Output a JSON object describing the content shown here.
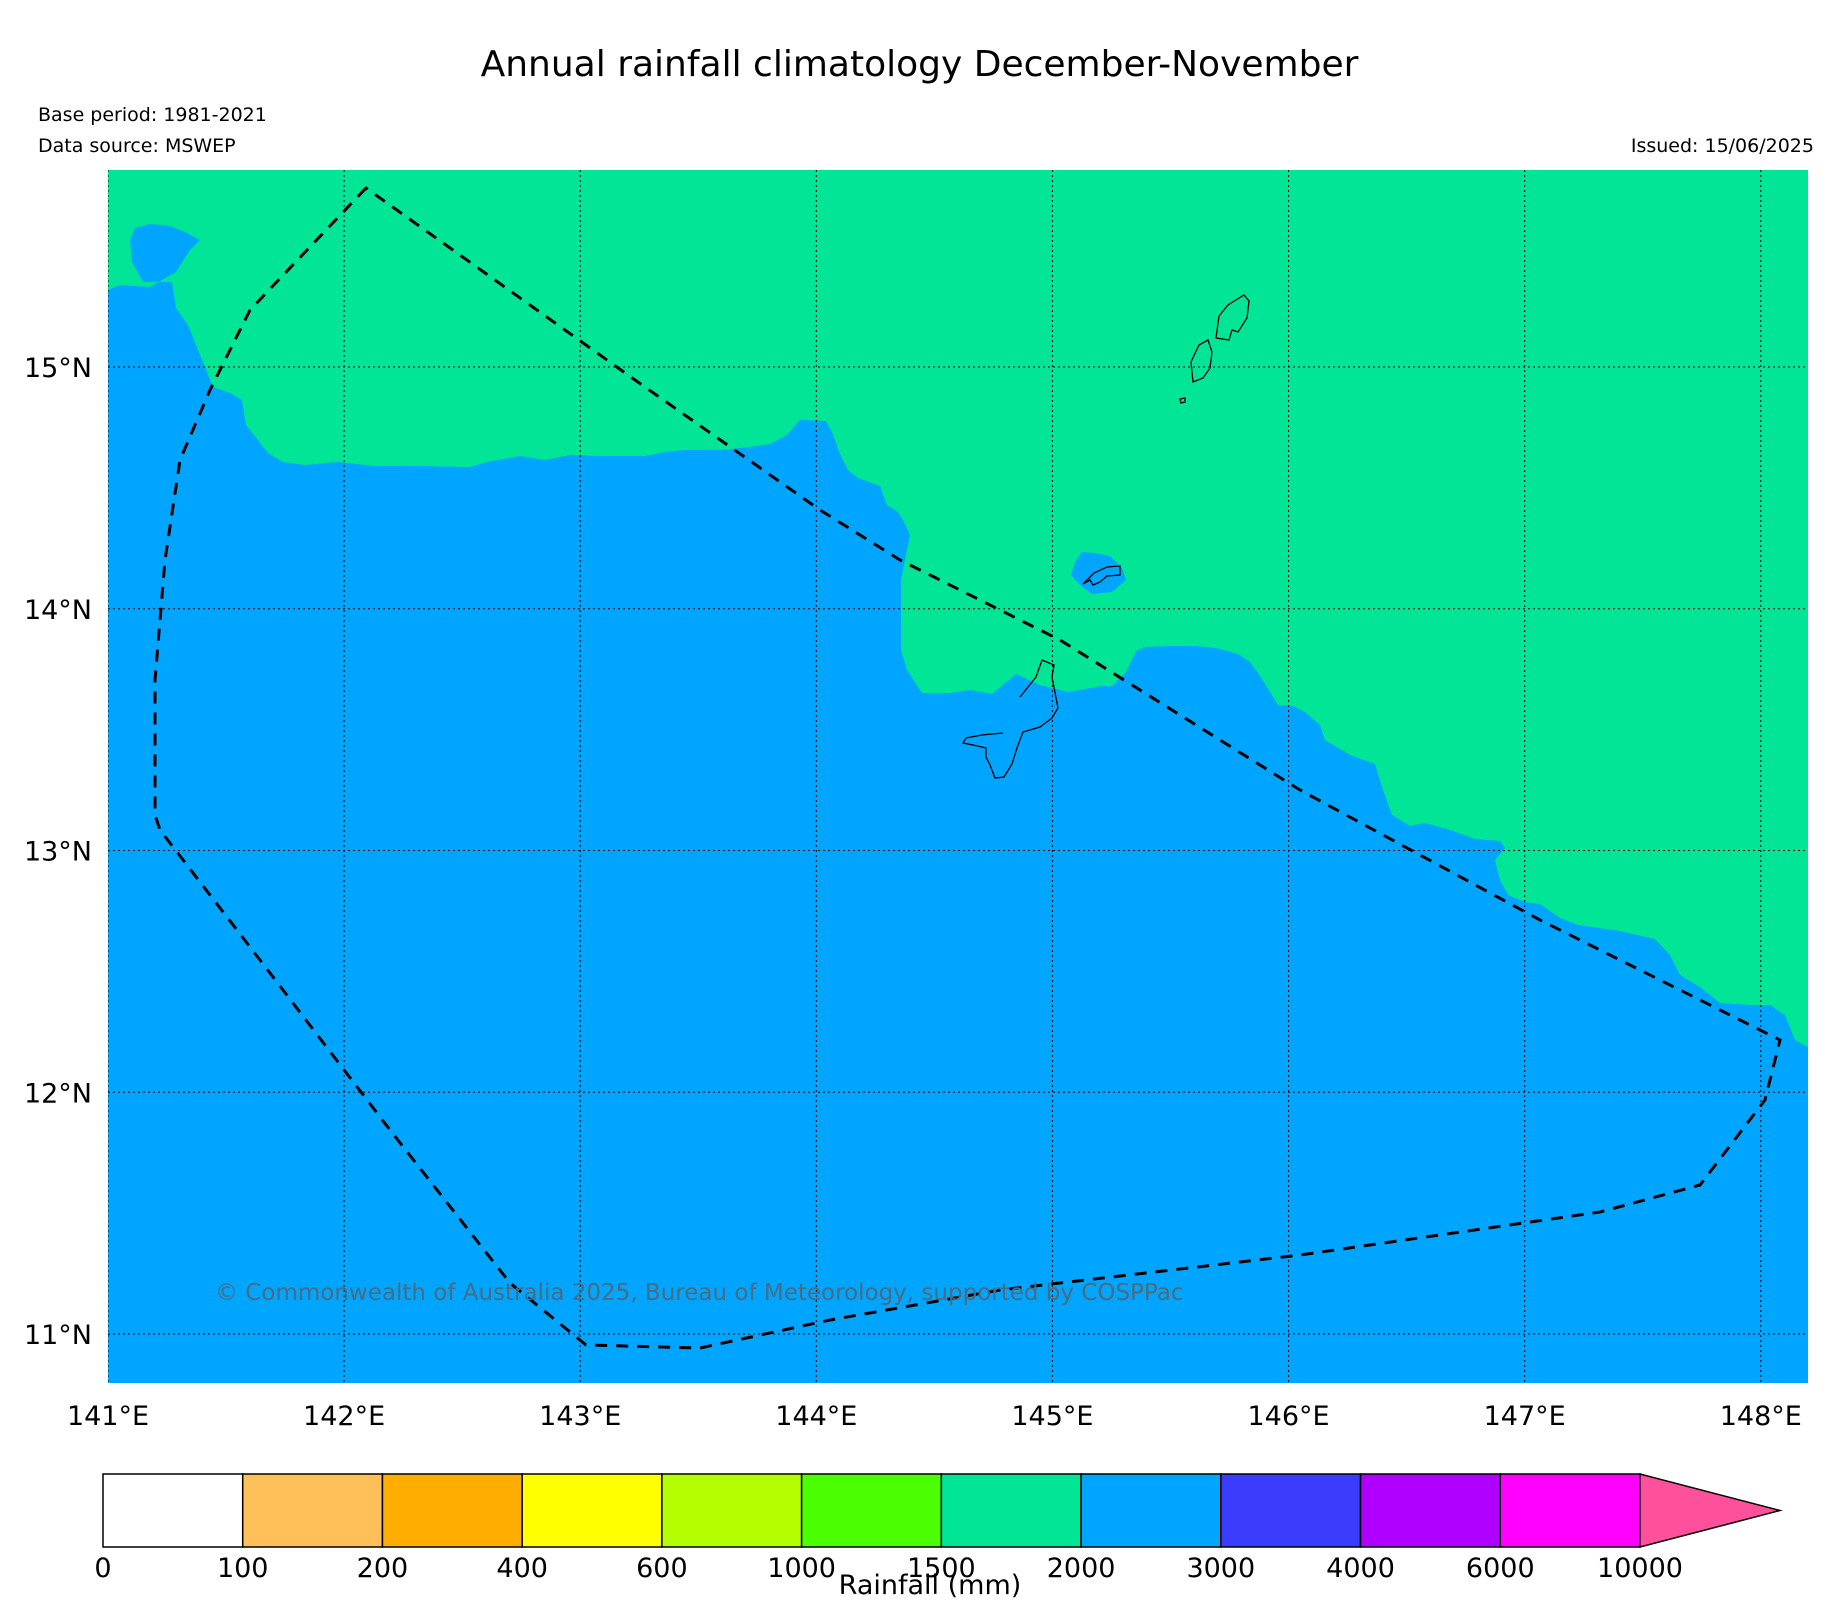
{
  "title": "Annual rainfall climatology December-November",
  "base_period": "Base period: 1981-2021",
  "data_source": "Data source: MSWEP",
  "issued": "Issued: 15/06/2025",
  "copyright": "© Commonwealth of Australia 2025, Bureau of Meteorology, supported by COSPPac",
  "map": {
    "lon_range": [
      141,
      148.2
    ],
    "lat_range": [
      10.8,
      15.8
    ],
    "lon_labels": [
      "141°E",
      "142°E",
      "143°E",
      "144°E",
      "145°E",
      "146°E",
      "147°E",
      "148°E"
    ],
    "lat_labels": [
      "15°N",
      "14°N",
      "13°N",
      "12°N",
      "11°N"
    ],
    "grid": "dotted",
    "boundary_style": "dashed",
    "regions": [
      {
        "range": "1500-2000",
        "color": "#00e696",
        "area": "north-east"
      },
      {
        "range": "2000-3000",
        "color": "#00a5ff",
        "area": "south-west"
      }
    ]
  },
  "colorbar": {
    "label": "Rainfall (mm)",
    "ticks": [
      "0",
      "100",
      "200",
      "400",
      "600",
      "1000",
      "1500",
      "2000",
      "3000",
      "4000",
      "6000",
      "10000"
    ],
    "colors": [
      "#ffffff",
      "#ffc05a",
      "#ffad00",
      "#ffff00",
      "#b3ff00",
      "#4bff00",
      "#00e696",
      "#00a5ff",
      "#3c3cff",
      "#b000ff",
      "#ff00ff"
    ],
    "extend_color": "#ff509b"
  },
  "colors": {
    "green": "#00e696",
    "blue": "#00a5ff"
  }
}
